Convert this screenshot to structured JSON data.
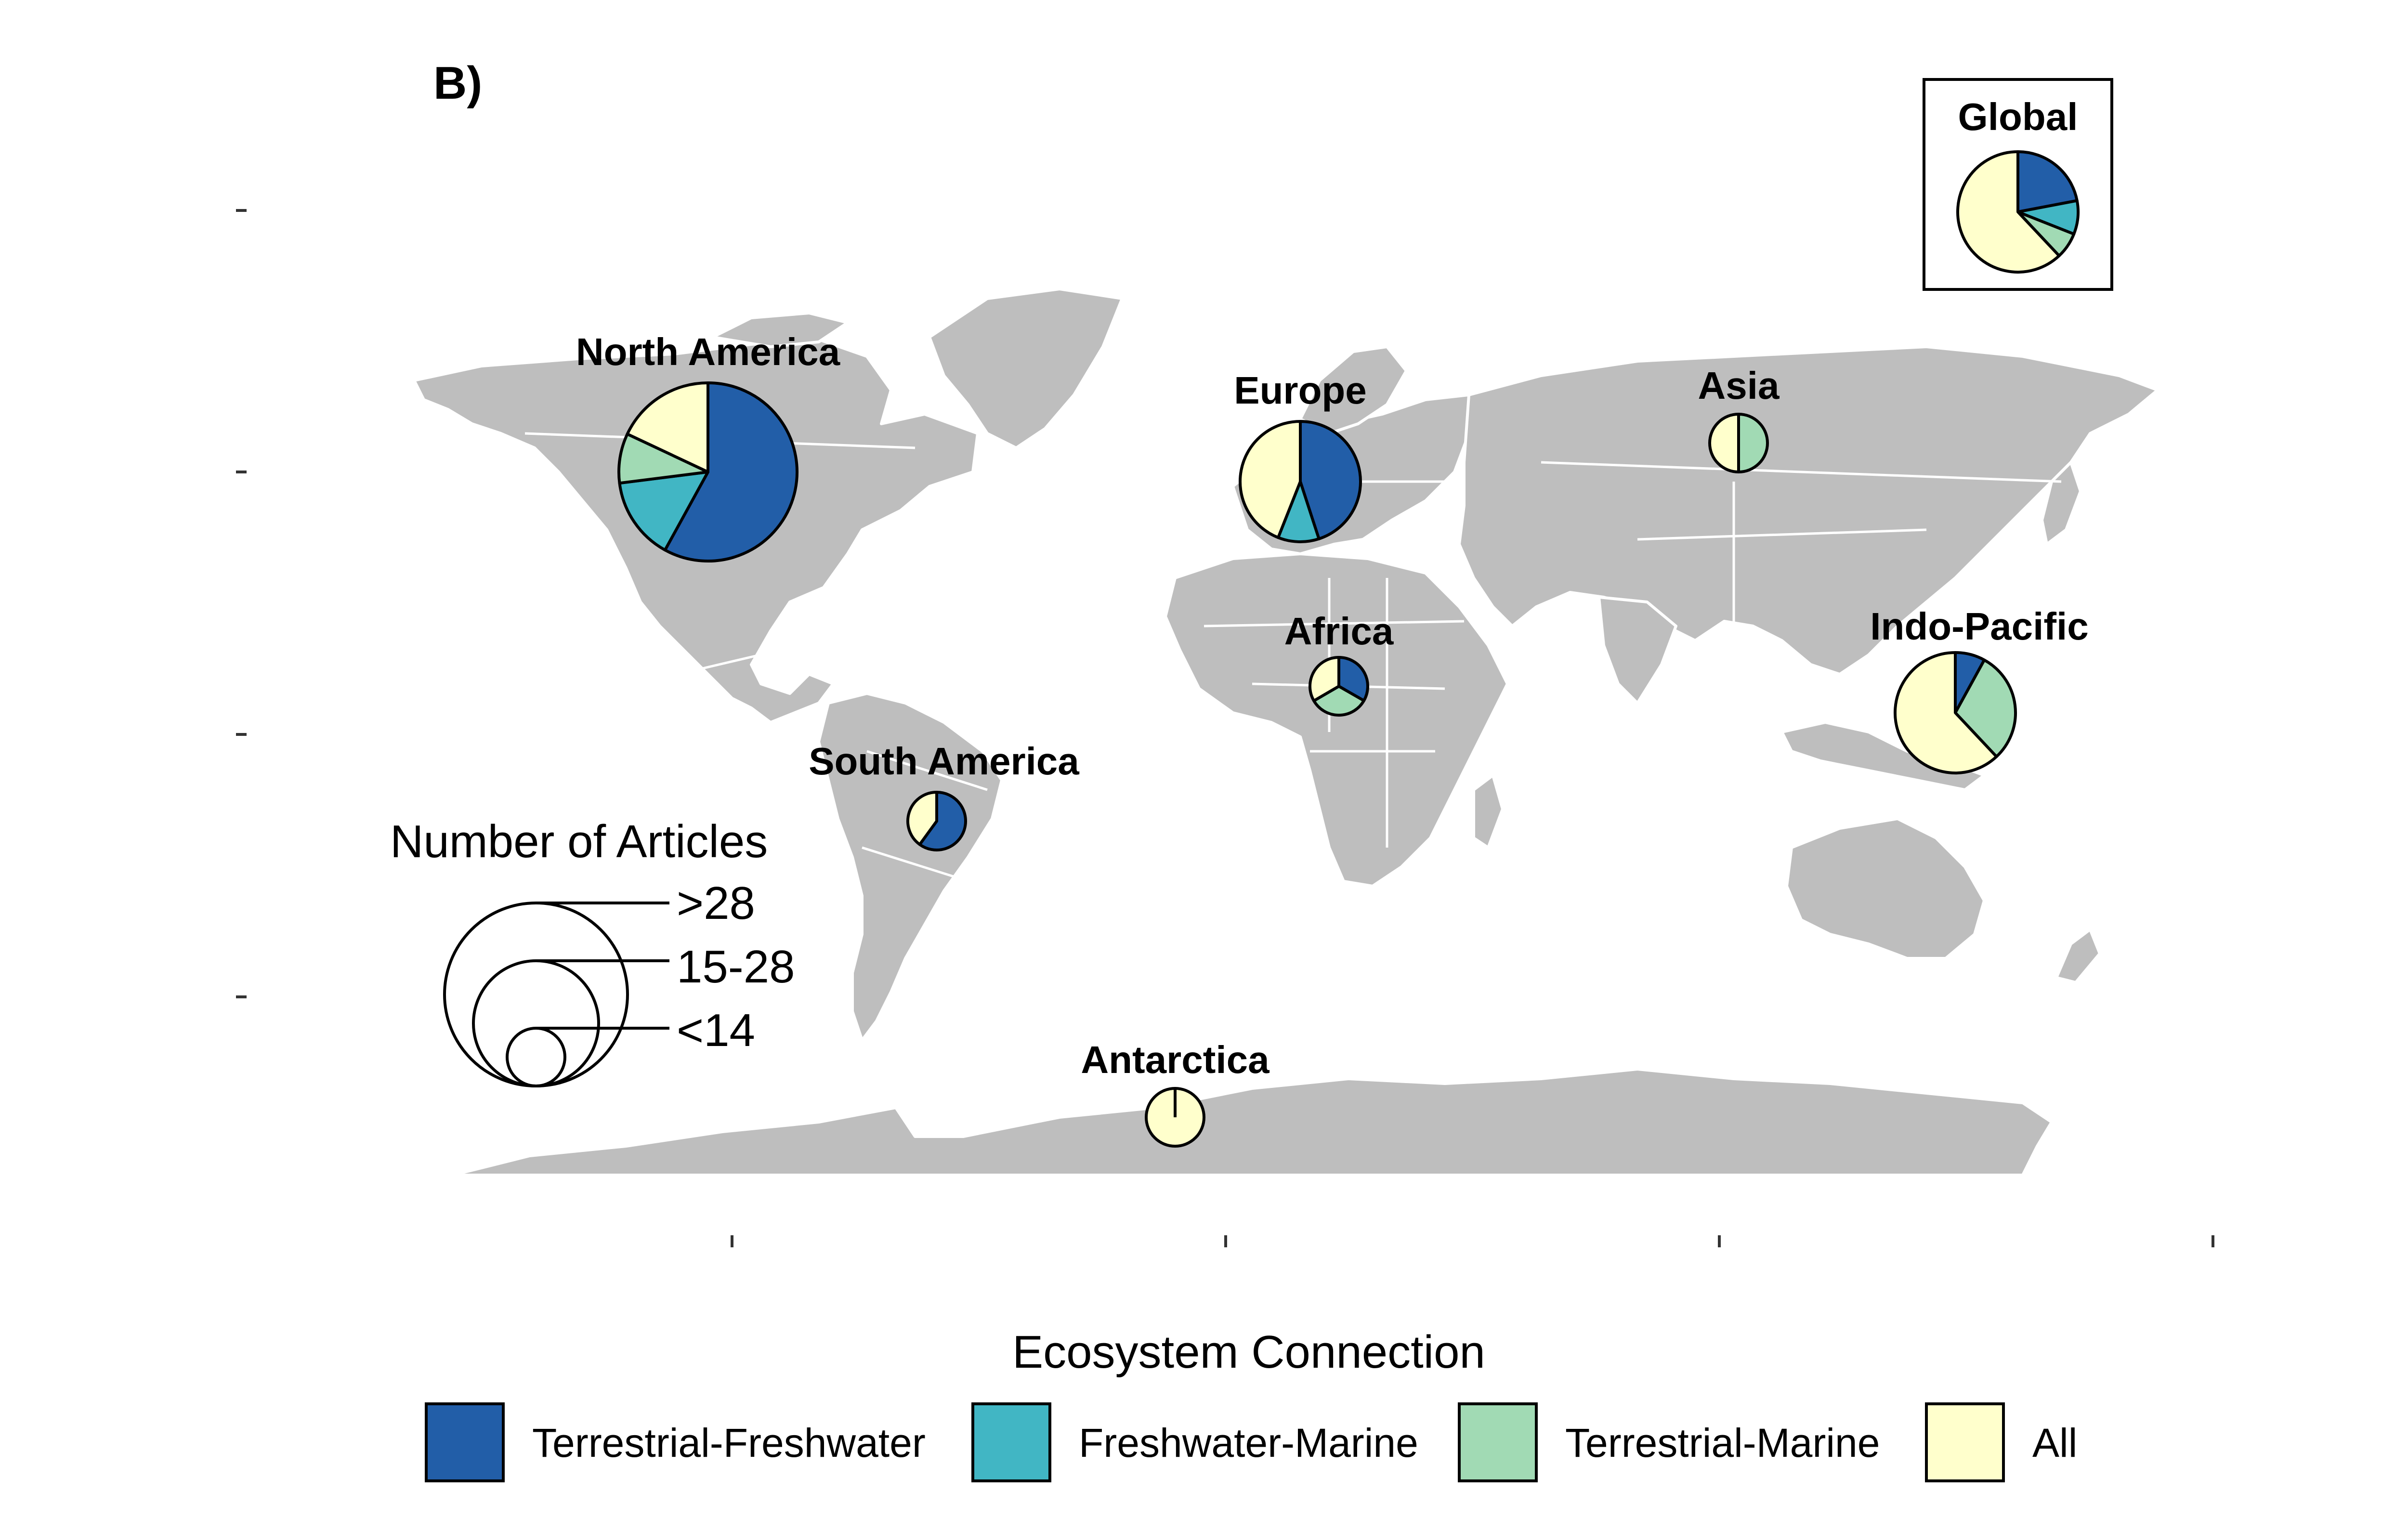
{
  "panel_label": "B)",
  "colors": {
    "terrestrial_freshwater": "#225ea8",
    "freshwater_marine": "#41b6c4",
    "terrestrial_marine": "#a1dab4",
    "all": "#ffffcc",
    "land": "#bebebe"
  },
  "regions": [
    {
      "id": "north-america",
      "label": "North America",
      "size_class": ">28",
      "shares": [
        0.58,
        0.15,
        0.09,
        0.18
      ]
    },
    {
      "id": "europe",
      "label": "Europe",
      "size_class": "15-28",
      "shares": [
        0.45,
        0.11,
        0.0,
        0.44
      ]
    },
    {
      "id": "asia",
      "label": "Asia",
      "size_class": "<14",
      "shares": [
        0.0,
        0.0,
        0.5,
        0.5
      ]
    },
    {
      "id": "africa",
      "label": "Africa",
      "size_class": "<14",
      "shares": [
        0.333,
        0.0,
        0.333,
        0.334
      ]
    },
    {
      "id": "indo-pacific",
      "label": "Indo-Pacific",
      "size_class": "15-28",
      "shares": [
        0.08,
        0.0,
        0.3,
        0.62
      ]
    },
    {
      "id": "south-america",
      "label": "South America",
      "size_class": "<14",
      "shares": [
        0.6,
        0.0,
        0.0,
        0.4
      ]
    },
    {
      "id": "antarctica",
      "label": "Antarctica",
      "size_class": "<14",
      "shares": [
        0.0,
        0.0,
        0.0,
        1.0
      ]
    },
    {
      "id": "global",
      "label": "Global",
      "size_class": "15-28",
      "shares": [
        0.22,
        0.09,
        0.07,
        0.62
      ]
    }
  ],
  "size_legend": {
    "title": "Number of Articles",
    "classes": [
      ">28",
      "15-28",
      "<14"
    ]
  },
  "color_legend": {
    "title": "Ecosystem Connection",
    "items": [
      {
        "label": "Terrestrial-Freshwater",
        "color_key": "terrestrial_freshwater"
      },
      {
        "label": "Freshwater-Marine",
        "color_key": "freshwater_marine"
      },
      {
        "label": "Terrestrial-Marine",
        "color_key": "terrestrial_marine"
      },
      {
        "label": "All",
        "color_key": "all"
      }
    ]
  }
}
